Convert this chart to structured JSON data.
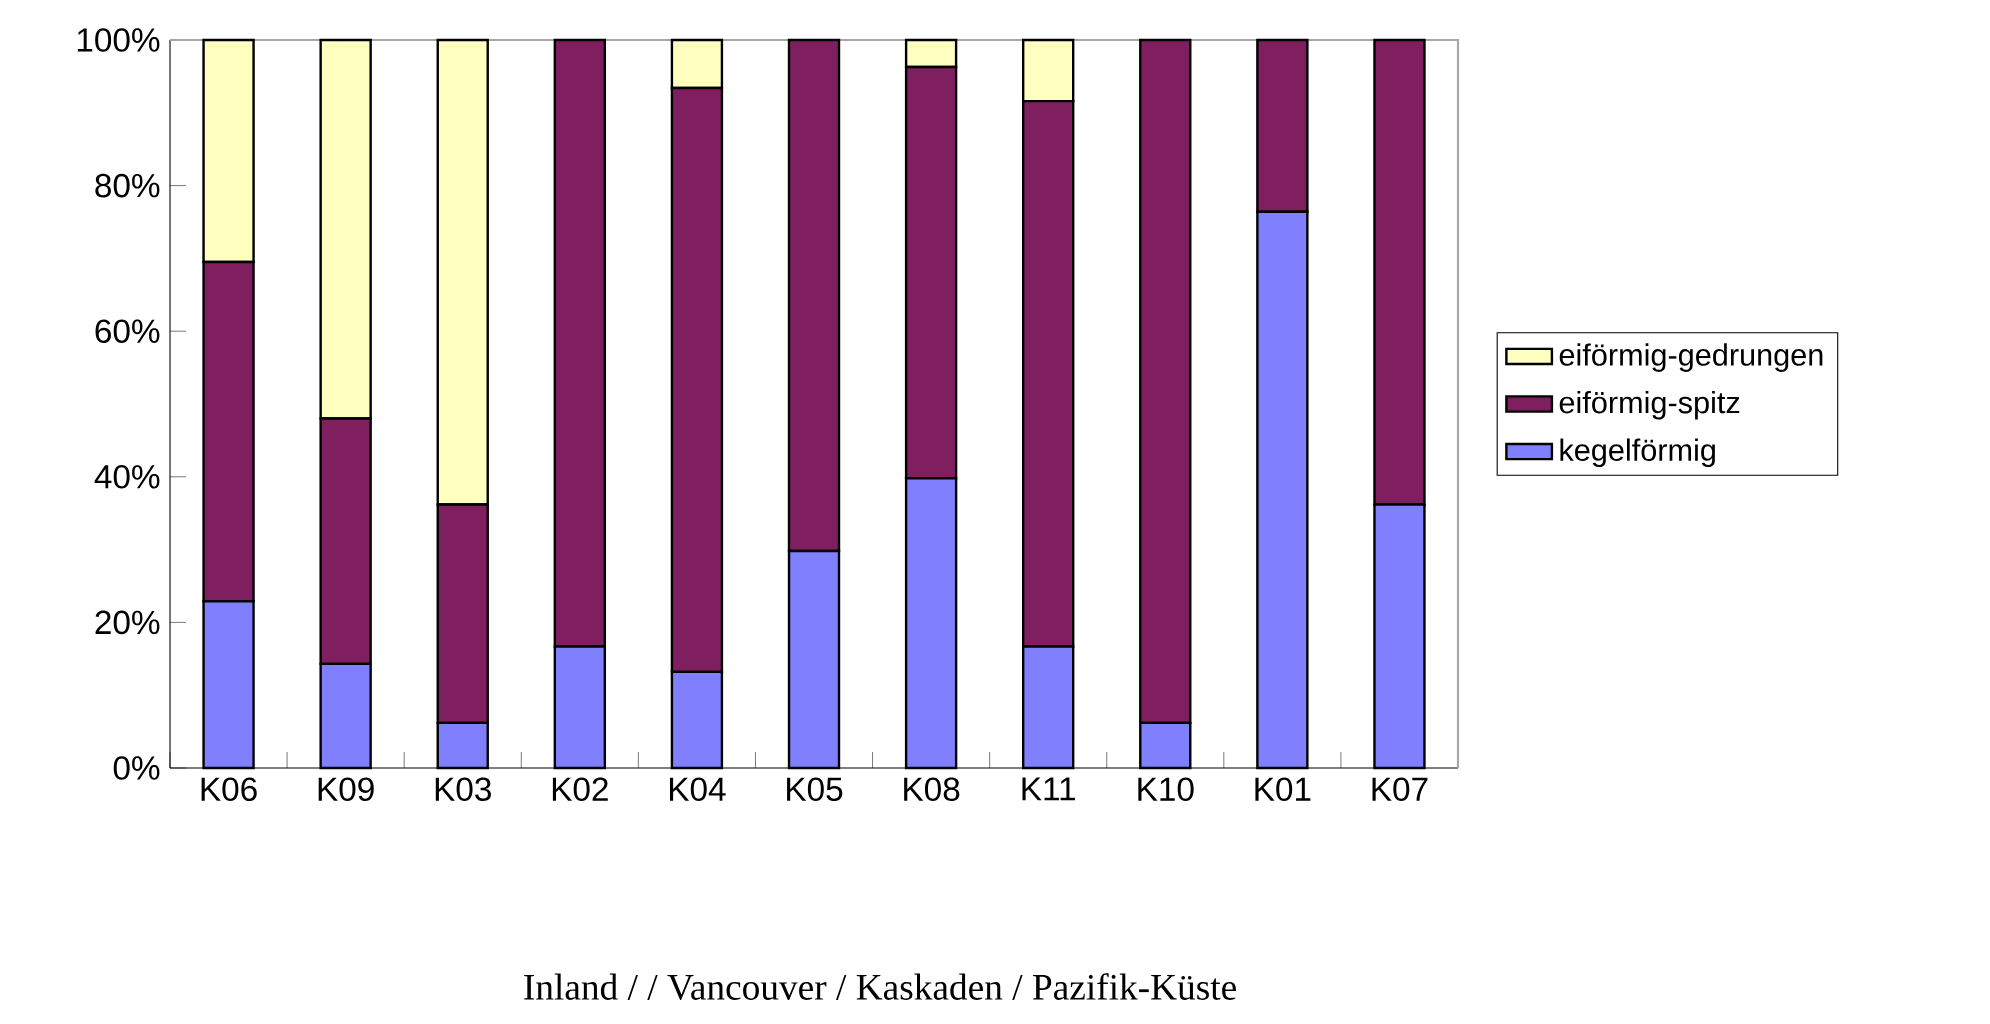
{
  "chart_data": {
    "type": "bar",
    "stacked": true,
    "categories": [
      "K06",
      "K09",
      "K03",
      "K02",
      "K04",
      "K05",
      "K08",
      "K11",
      "K10",
      "K01",
      "K07"
    ],
    "series": [
      {
        "name": "kegelförmig",
        "color": "#8080ff",
        "values": [
          22.9,
          14.3,
          6.2,
          16.7,
          13.2,
          29.8,
          39.8,
          16.7,
          6.2,
          76.4,
          36.2
        ]
      },
      {
        "name": "eiförmig-spitz",
        "color": "#801f60",
        "values": [
          46.6,
          33.7,
          30.0,
          83.3,
          80.2,
          70.2,
          56.5,
          74.9,
          93.8,
          23.6,
          63.8
        ]
      },
      {
        "name": "eiförmig-gedrungen",
        "color": "#ffffc0",
        "values": [
          30.5,
          52.0,
          63.8,
          0,
          6.6,
          0,
          3.7,
          8.4,
          0,
          0,
          0
        ]
      }
    ],
    "ylim": [
      0,
      100
    ],
    "yticks": [
      {
        "value": 0,
        "label": "0%"
      },
      {
        "value": 20,
        "label": "20%"
      },
      {
        "value": 40,
        "label": "40%"
      },
      {
        "value": 60,
        "label": "60%"
      },
      {
        "value": 80,
        "label": "80%"
      },
      {
        "value": 100,
        "label": "100%"
      }
    ],
    "grid": false,
    "legend": "right",
    "annotations": [
      "Inland /    / Vancouver / Kaskaden / Pazifik-Küste"
    ]
  }
}
